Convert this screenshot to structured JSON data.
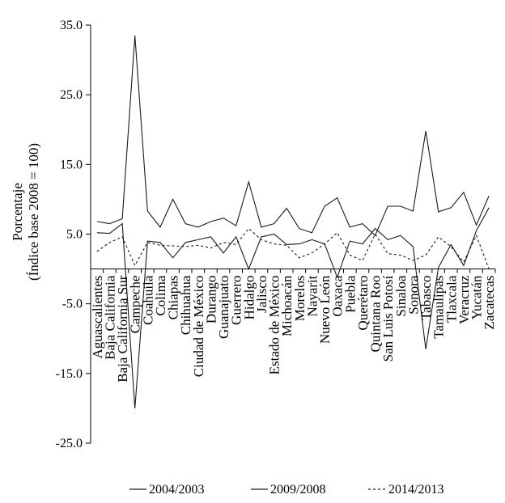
{
  "chart_data": {
    "type": "line",
    "ylabel_line1": "Porcentaje",
    "ylabel_line2": "(Índice base 2008 = 100)",
    "ylim": [
      -25,
      35
    ],
    "yticks": [
      35,
      25,
      15,
      5,
      -5,
      -15,
      -25
    ],
    "ytick_labels": [
      "35.0",
      "25.0",
      "15.0",
      "5.0",
      "-5.0",
      "-15.0",
      "-25.0"
    ],
    "grid": false,
    "legend_position": "bottom",
    "categories": [
      "Aguascalientes",
      "Baja California",
      "Baja California Sur",
      "Campeche",
      "Coahuila",
      "Colima",
      "Chiapas",
      "Chihuahua",
      "Ciudad de México",
      "Durango",
      "Guanajuato",
      "Guerrero",
      "Hidalgo",
      "Jalisco",
      "Estado de México",
      "Michoacán",
      "Morelos",
      "Nayarit",
      "Nuevo León",
      "Oaxaca",
      "Puebla",
      "Querétaro",
      "Quintana Roo",
      "San Luis Potosí",
      "Sinaloa",
      "Sonora",
      "Tabasco",
      "Tamaulipas",
      "Tlaxcala",
      "Veracruz",
      "Yucatán",
      "Zacatecas"
    ],
    "series": [
      {
        "name": "2004/2003",
        "dash": "solid",
        "values": [
          6.8,
          6.5,
          7.2,
          33.5,
          8.3,
          6.0,
          10.0,
          6.5,
          6.0,
          6.8,
          7.3,
          6.2,
          12.5,
          6.0,
          6.5,
          8.7,
          5.8,
          5.2,
          9.0,
          10.2,
          6.0,
          6.5,
          4.8,
          9.0,
          9.0,
          8.3,
          19.8,
          8.2,
          8.8,
          11.0,
          6.3,
          10.5
        ]
      },
      {
        "name": "2009/2008",
        "dash": "solid",
        "values": [
          5.2,
          5.1,
          6.5,
          -20.0,
          4.0,
          3.8,
          1.6,
          3.8,
          4.2,
          4.6,
          2.3,
          4.6,
          0.0,
          4.6,
          5.0,
          3.5,
          3.6,
          4.2,
          3.6,
          -1.2,
          4.0,
          3.6,
          5.8,
          4.2,
          4.8,
          3.2,
          -11.5,
          0.2,
          3.5,
          0.5,
          5.5,
          8.8
        ]
      },
      {
        "name": "2014/2013",
        "dash": "dashed",
        "values": [
          2.5,
          3.8,
          4.6,
          0.5,
          3.8,
          3.4,
          3.3,
          3.2,
          3.4,
          3.0,
          3.8,
          3.5,
          5.8,
          4.2,
          3.6,
          3.4,
          1.6,
          2.3,
          3.6,
          5.2,
          2.0,
          1.2,
          5.0,
          2.2,
          2.0,
          1.2,
          2.0,
          4.6,
          3.2,
          1.0,
          4.8,
          0.0
        ]
      }
    ]
  }
}
